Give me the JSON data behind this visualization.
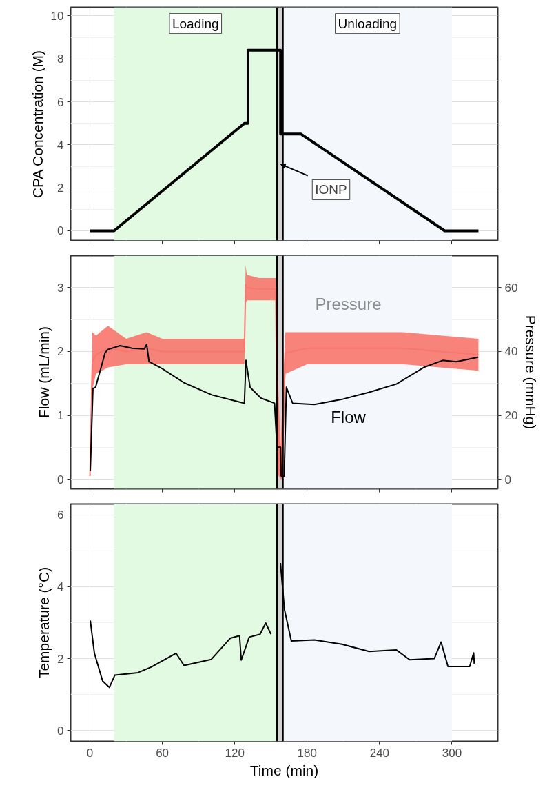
{
  "chart_data": [
    {
      "type": "line",
      "ylabel": "CPA Concentration (M)",
      "xlim": [
        -16,
        338
      ],
      "xticks": [
        0,
        60,
        120,
        180,
        240,
        300
      ],
      "ylim": [
        -0.45,
        10.4
      ],
      "yticks": [
        0,
        2,
        4,
        6,
        8,
        10
      ],
      "grid": true,
      "tick_labels": "y",
      "series": [
        {
          "color": "#000000",
          "x": [
            0,
            20,
            128,
            131,
            131,
            158,
            158,
            175,
            294,
            322
          ],
          "values": [
            0,
            0,
            5,
            5,
            8.4,
            8.4,
            4.5,
            4.5,
            0,
            0
          ]
        }
      ],
      "bands": [
        {
          "axis": "x",
          "from": 20,
          "to": 155,
          "label": "Loading",
          "color": "#e1fae1"
        },
        {
          "axis": "x",
          "from": 155,
          "to": 160,
          "color": "#d3d3d3"
        },
        {
          "axis": "x",
          "from": 160,
          "to": 300,
          "label": "Unloading",
          "color": "#f4f8fc"
        }
      ],
      "ref_lines": [
        {
          "axis": "x",
          "value": 155,
          "color": "#000000"
        },
        {
          "axis": "x",
          "value": 160,
          "color": "#000000"
        }
      ],
      "annotations": [
        {
          "text": "IONP",
          "x": 157,
          "y": 3.1
        }
      ]
    },
    {
      "type": "line",
      "ylabel": "Flow (mL/min)",
      "y2label": "Pressure (mmHg)",
      "xlim": [
        -16,
        338
      ],
      "xticks": [
        0,
        60,
        120,
        180,
        240,
        300
      ],
      "ylim": [
        -0.15,
        3.5
      ],
      "yticks": [
        0,
        1,
        2,
        3
      ],
      "y2lim": [
        -3,
        70
      ],
      "y2ticks": [
        0,
        20,
        40,
        60
      ],
      "tick_labels": "y",
      "series": [
        {
          "name": "Pressure",
          "color": "#f8766d",
          "axis": "y2",
          "x": [
            0,
            2,
            5,
            15,
            30,
            47,
            60,
            90,
            128,
            129,
            130,
            140,
            154,
            155,
            158,
            160,
            162,
            180,
            220,
            260,
            290,
            322
          ],
          "values": [
            1,
            37,
            39,
            41,
            40,
            41,
            40,
            40,
            40,
            61,
            60,
            59.5,
            59.5,
            20,
            5,
            15,
            39.5,
            41,
            41,
            41,
            40,
            39
          ],
          "lower": [
            0,
            28,
            33,
            35,
            36,
            36,
            36,
            36,
            36,
            55,
            56,
            56,
            56,
            2,
            0,
            0,
            33,
            36,
            36,
            36,
            35,
            34
          ],
          "upper": [
            2,
            46,
            45,
            48,
            44,
            46,
            44,
            44,
            44,
            67,
            64,
            63,
            63,
            40,
            10,
            30,
            46,
            46,
            46,
            46,
            45,
            44
          ]
        },
        {
          "name": "Flow",
          "color": "#000000",
          "x": [
            0.3,
            2.5,
            4.7,
            12.6,
            14.8,
            25,
            35,
            45,
            47,
            49,
            60,
            78,
            101,
            128,
            129.3,
            132.7,
            141.7,
            153,
            155,
            158,
            158.5,
            161,
            162.8,
            168,
            186,
            208.9,
            231,
            254,
            276.6,
            292.3,
            303.6,
            321.7
          ],
          "values": [
            0.13,
            1.42,
            1.44,
            1.98,
            2.03,
            2.09,
            2.05,
            2.04,
            2.11,
            1.84,
            1.73,
            1.51,
            1.32,
            1.19,
            1.86,
            1.44,
            1.27,
            1.19,
            0.5,
            0.5,
            0.05,
            0.05,
            1.44,
            1.19,
            1.17,
            1.25,
            1.36,
            1.49,
            1.75,
            1.86,
            1.84,
            1.91
          ]
        }
      ],
      "bands": [
        {
          "axis": "x",
          "from": 20,
          "to": 155,
          "color": "#e1fae1"
        },
        {
          "axis": "x",
          "from": 155,
          "to": 160,
          "color": "#d3d3d3"
        },
        {
          "axis": "x",
          "from": 160,
          "to": 300,
          "color": "#f4f8fc"
        }
      ],
      "ref_lines": [
        {
          "axis": "x",
          "value": 155,
          "color": "#000000"
        },
        {
          "axis": "x",
          "value": 160,
          "color": "#000000"
        }
      ],
      "grid": true
    },
    {
      "type": "line",
      "xlabel": "Time (min)",
      "ylabel": "Temperature (°C)",
      "xlim": [
        -16,
        338
      ],
      "xticks": [
        0,
        60,
        120,
        180,
        240,
        300
      ],
      "ylim": [
        -0.3,
        6.3
      ],
      "yticks": [
        0,
        2,
        4,
        6
      ],
      "grid": true,
      "series": [
        {
          "color": "#000000",
          "x": [
            0.3,
            3.7,
            10.5,
            16.1,
            20.6,
            39.8,
            51,
            71.3,
            78,
            100.6,
            116.4,
            124,
            125.4,
            132,
            141,
            145.7,
            150,
            155,
            157.9,
            161.2,
            166.9,
            186,
            208.9,
            231.4,
            254,
            265,
            285.4,
            291,
            296.7,
            314.7,
            318,
            318.5
          ],
          "values": [
            3.06,
            2.15,
            1.38,
            1.2,
            1.54,
            1.61,
            1.77,
            2.15,
            1.81,
            1.98,
            2.57,
            2.64,
            1.96,
            2.6,
            2.68,
            2.99,
            2.68,
            null,
            4.66,
            3.37,
            2.49,
            2.52,
            2.4,
            2.2,
            2.24,
            1.97,
            2.0,
            2.46,
            1.78,
            1.78,
            2.16,
            1.86
          ]
        }
      ],
      "bands": [
        {
          "axis": "x",
          "from": 20,
          "to": 155,
          "color": "#e1fae1"
        },
        {
          "axis": "x",
          "from": 155,
          "to": 160,
          "color": "#d3d3d3"
        },
        {
          "axis": "x",
          "from": 160,
          "to": 300,
          "color": "#f4f8fc"
        }
      ],
      "ref_lines": [
        {
          "axis": "x",
          "value": 155,
          "color": "#000000"
        },
        {
          "axis": "x",
          "value": 160,
          "color": "#000000"
        }
      ]
    }
  ]
}
